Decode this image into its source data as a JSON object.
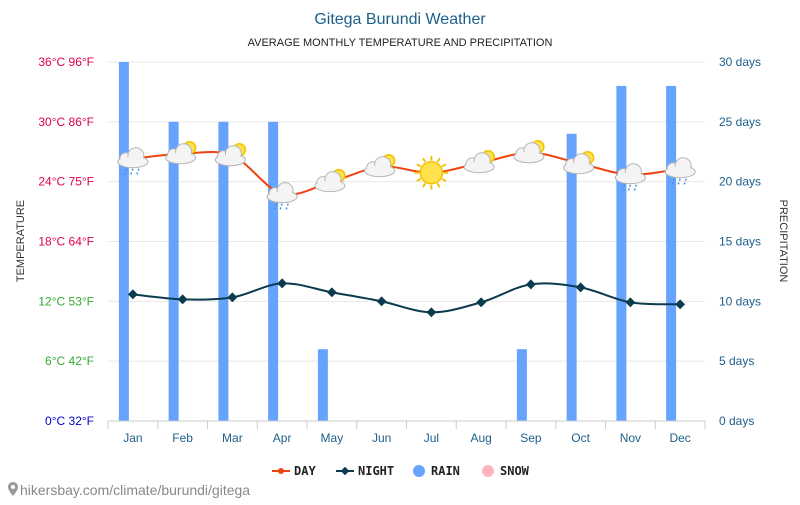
{
  "chart_data": {
    "type": "bar",
    "title": "Gitega Burundi Weather",
    "subtitle": "AVERAGE MONTHLY TEMPERATURE AND PRECIPITATION",
    "y_left_label": "TEMPERATURE",
    "y_right_label": "PRECIPITATION",
    "categories": [
      "Jan",
      "Feb",
      "Mar",
      "Apr",
      "May",
      "Jun",
      "Jul",
      "Aug",
      "Sep",
      "Oct",
      "Nov",
      "Dec"
    ],
    "temp_axis": {
      "range_c": [
        0,
        36
      ],
      "ticks": [
        {
          "c": 0,
          "label": "0°C 32°F",
          "color": "#0000cc"
        },
        {
          "c": 6,
          "label": "6°C 42°F",
          "color": "#33aa33"
        },
        {
          "c": 12,
          "label": "12°C 53°F",
          "color": "#33aa33"
        },
        {
          "c": 18,
          "label": "18°C 64°F",
          "color": "#e0004f"
        },
        {
          "c": 24,
          "label": "24°C 75°F",
          "color": "#e0004f"
        },
        {
          "c": 30,
          "label": "30°C 86°F",
          "color": "#e0004f"
        },
        {
          "c": 36,
          "label": "36°C 96°F",
          "color": "#e0004f"
        }
      ]
    },
    "precip_axis": {
      "range": [
        0,
        30
      ],
      "ticks": [
        {
          "v": 0,
          "label": "0 days"
        },
        {
          "v": 5,
          "label": "5 days"
        },
        {
          "v": 10,
          "label": "10 days"
        },
        {
          "v": 15,
          "label": "15 days"
        },
        {
          "v": 20,
          "label": "20 days"
        },
        {
          "v": 25,
          "label": "25 days"
        },
        {
          "v": 30,
          "label": "30 days"
        }
      ]
    },
    "series": [
      {
        "name": "DAY",
        "type": "line",
        "color": "#ee4411",
        "values": [
          26.3,
          26.8,
          26.6,
          22.8,
          24.0,
          25.5,
          24.9,
          25.9,
          26.9,
          25.8,
          24.7,
          25.3
        ]
      },
      {
        "name": "NIGHT",
        "type": "line",
        "color": "#0b3b4e",
        "values": [
          12.7,
          12.2,
          12.4,
          13.8,
          12.9,
          12.0,
          10.9,
          11.9,
          13.7,
          13.4,
          11.9,
          11.7
        ]
      },
      {
        "name": "RAIN",
        "type": "bar",
        "color": "#66a3ff",
        "values": [
          30,
          25,
          25,
          25,
          6,
          0,
          0,
          0,
          6,
          24,
          28,
          28
        ]
      },
      {
        "name": "SNOW",
        "type": "bar",
        "color": "#ffb6c1",
        "values": [
          0,
          0,
          0,
          0,
          0,
          0,
          0,
          0,
          0,
          0,
          0,
          0
        ]
      }
    ],
    "weather_icons": [
      "cloud-rain-icon",
      "partly-cloudy-icon",
      "partly-cloudy-icon",
      "cloud-rain-icon",
      "partly-cloudy-icon",
      "partly-cloudy-icon",
      "sun-icon",
      "partly-cloudy-icon",
      "partly-cloudy-icon",
      "partly-cloudy-icon",
      "cloud-rain-icon",
      "cloud-rain-icon"
    ],
    "legend": {
      "position": "bottom-center"
    },
    "grid": true
  },
  "footer": {
    "site_text": "hikersbay.com/climate/burundi/gitega",
    "pin_icon": "map-pin-icon"
  },
  "colors": {
    "title": "#1d5f8a",
    "right_axis": "#1d5f8a",
    "grid": "#e8e8e8",
    "axis_line": "#cccccc"
  }
}
